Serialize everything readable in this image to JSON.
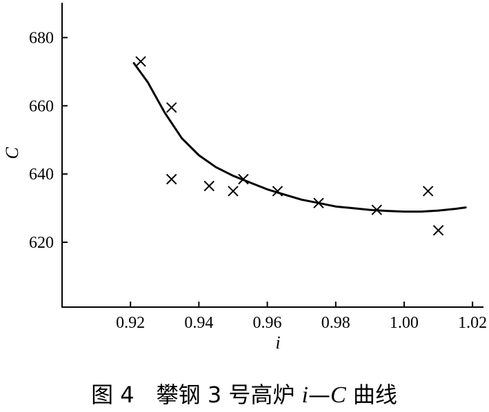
{
  "chart_data": {
    "type": "scatter",
    "title": "",
    "caption": {
      "prefix": "图 4　攀钢 3 号高炉 ",
      "var_i": "i",
      "dash": "—",
      "var_c": "C",
      "suffix": " 曲线"
    },
    "xlabel": "i",
    "ylabel": "C",
    "xlim": [
      0.9,
      1.023
    ],
    "ylim": [
      601,
      690
    ],
    "x_ticks": [
      0.92,
      0.94,
      0.96,
      0.98,
      1.0,
      1.02
    ],
    "x_tick_labels": [
      "0.92",
      "0.94",
      "0.96",
      "0.98",
      "1.00",
      "1.02"
    ],
    "y_ticks": [
      620,
      640,
      660,
      680
    ],
    "y_tick_labels": [
      "620",
      "640",
      "660",
      "680"
    ],
    "grid": false,
    "series": [
      {
        "kind": "points",
        "marker": "x",
        "x": [
          0.923,
          0.932,
          0.932,
          0.943,
          0.95,
          0.953,
          0.963,
          0.975,
          0.992,
          1.007,
          1.01
        ],
        "y": [
          673,
          659.5,
          638.5,
          636.5,
          635,
          638.5,
          635,
          631.5,
          629.5,
          635,
          623.5
        ]
      },
      {
        "kind": "fit-curve",
        "x": [
          0.921,
          0.925,
          0.93,
          0.935,
          0.94,
          0.945,
          0.95,
          0.955,
          0.96,
          0.965,
          0.97,
          0.975,
          0.98,
          0.985,
          0.99,
          0.995,
          1.0,
          1.005,
          1.01,
          1.015,
          1.018
        ],
        "y": [
          672.5,
          667,
          658,
          650.5,
          645.5,
          642,
          639.5,
          637.5,
          635.5,
          634,
          632.5,
          631.5,
          630.5,
          630,
          629.5,
          629.2,
          629,
          629,
          629.3,
          629.8,
          630.2
        ]
      }
    ]
  }
}
